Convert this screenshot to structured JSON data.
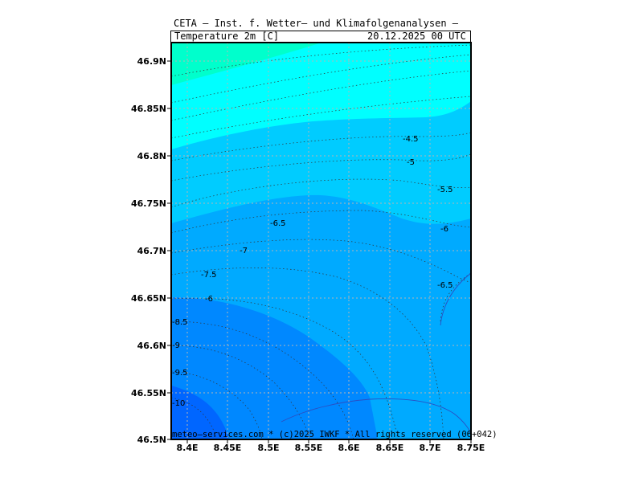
{
  "header": {
    "title": "CETA — Inst. f. Wetter— und Klimafolgenanalysen —",
    "field": "Temperature 2m [C]",
    "valid_time": "20.12.2025 00 UTC"
  },
  "footer": "meteo—services.com * (c)2025 IWKF * All rights reserved (06+042)",
  "axes": {
    "lon_labels": [
      "8.4E",
      "8.45E",
      "8.5E",
      "8.55E",
      "8.6E",
      "8.65E",
      "8.7E",
      "8.75E"
    ],
    "lat_labels": [
      "46.9N",
      "46.85N",
      "46.8N",
      "46.75N",
      "46.7N",
      "46.65N",
      "46.6N",
      "46.55N",
      "46.5N"
    ],
    "lon_range": [
      8.38,
      8.75
    ],
    "lat_range": [
      46.5,
      46.92
    ],
    "grid": true
  },
  "contour_labels": [
    "-4.5",
    "-5",
    "-5.5",
    "-6",
    "-6.5",
    "-6",
    "-6.5",
    "-7",
    "-7.5",
    "-8",
    "-8.5",
    "-9",
    "-9.5",
    "-10"
  ],
  "colors": {
    "band_warm_1": "#00ffcc",
    "band_warm_2": "#00ffff",
    "band_mid_1": "#00ccff",
    "band_mid_2": "#00aaff",
    "band_cold_1": "#0088ff",
    "band_cold_2": "#0066ff",
    "frame": "#000000",
    "grid": "#b4b4b4"
  }
}
